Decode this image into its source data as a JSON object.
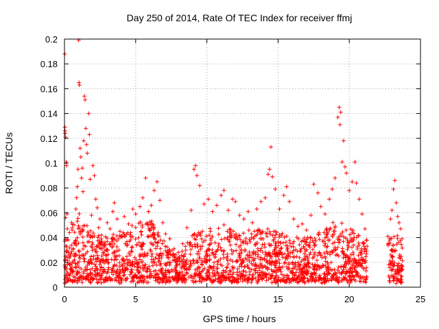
{
  "chart_data": {
    "type": "scatter",
    "title": "Day 250 of 2014, Rate Of TEC Index for receiver ffmj",
    "xlabel": "GPS time / hours",
    "ylabel": "ROTI / TECUs",
    "xlim": [
      0,
      25
    ],
    "ylim": [
      0,
      0.2
    ],
    "xticks": [
      0,
      5,
      10,
      15,
      20,
      25
    ],
    "xtick_labels": [
      "0",
      "5",
      "10",
      "15",
      "20",
      "25"
    ],
    "yticks": [
      0,
      0.02,
      0.04,
      0.06,
      0.08,
      0.1,
      0.12,
      0.14,
      0.16,
      0.18,
      0.2
    ],
    "ytick_labels": [
      "0",
      "0.02",
      "0.04",
      "0.06",
      "0.08",
      "0.1",
      "0.12",
      "0.14",
      "0.16",
      "0.18",
      "0.2"
    ],
    "grid": true,
    "marker": "plus",
    "color": "#ff0000",
    "series": [
      {
        "name": "ROTI",
        "points": [
          [
            0.02,
            0.188
          ],
          [
            0.03,
            0.129
          ],
          [
            0.04,
            0.126
          ],
          [
            0.05,
            0.124
          ],
          [
            0.07,
            0.121
          ],
          [
            0.08,
            0.056
          ],
          [
            0.1,
            0.033
          ],
          [
            0.12,
            0.101
          ],
          [
            0.15,
            0.098
          ],
          [
            0.18,
            0.059
          ],
          [
            0.2,
            0.047
          ],
          [
            0.25,
            0.038
          ],
          [
            0.3,
            0.026
          ],
          [
            0.35,
            0.044
          ],
          [
            0.4,
            0.018
          ],
          [
            0.5,
            0.052
          ],
          [
            0.6,
            0.031
          ],
          [
            0.7,
            0.022
          ],
          [
            0.8,
            0.063
          ],
          [
            0.85,
            0.072
          ],
          [
            0.9,
            0.081
          ],
          [
            0.95,
            0.095
          ],
          [
            1.0,
            0.199
          ],
          [
            1.02,
            0.165
          ],
          [
            1.05,
            0.163
          ],
          [
            1.1,
            0.112
          ],
          [
            1.15,
            0.105
          ],
          [
            1.2,
            0.088
          ],
          [
            1.25,
            0.096
          ],
          [
            1.3,
            0.077
          ],
          [
            1.35,
            0.118
          ],
          [
            1.4,
            0.154
          ],
          [
            1.45,
            0.151
          ],
          [
            1.5,
            0.128
          ],
          [
            1.55,
            0.115
          ],
          [
            1.6,
            0.108
          ],
          [
            1.7,
            0.14
          ],
          [
            1.75,
            0.123
          ],
          [
            1.8,
            0.087
          ],
          [
            1.9,
            0.058
          ],
          [
            2.0,
            0.098
          ],
          [
            2.1,
            0.09
          ],
          [
            2.2,
            0.071
          ],
          [
            2.3,
            0.064
          ],
          [
            2.4,
            0.048
          ],
          [
            2.5,
            0.055
          ],
          [
            2.6,
            0.042
          ],
          [
            2.8,
            0.036
          ],
          [
            3.0,
            0.052
          ],
          [
            3.2,
            0.047
          ],
          [
            3.4,
            0.061
          ],
          [
            3.5,
            0.068
          ],
          [
            3.7,
            0.055
          ],
          [
            3.9,
            0.045
          ],
          [
            4.2,
            0.057
          ],
          [
            4.5,
            0.051
          ],
          [
            4.8,
            0.063
          ],
          [
            5.0,
            0.059
          ],
          [
            5.3,
            0.065
          ],
          [
            5.5,
            0.072
          ],
          [
            5.7,
            0.088
          ],
          [
            5.9,
            0.061
          ],
          [
            6.1,
            0.066
          ],
          [
            6.3,
            0.078
          ],
          [
            6.5,
            0.085
          ],
          [
            6.7,
            0.07
          ],
          [
            6.9,
            0.052
          ],
          [
            7.1,
            0.043
          ],
          [
            7.4,
            0.039
          ],
          [
            7.7,
            0.031
          ],
          [
            8.0,
            0.028
          ],
          [
            8.3,
            0.035
          ],
          [
            8.6,
            0.048
          ],
          [
            8.9,
            0.062
          ],
          [
            9.1,
            0.095
          ],
          [
            9.2,
            0.098
          ],
          [
            9.3,
            0.09
          ],
          [
            9.5,
            0.082
          ],
          [
            9.8,
            0.067
          ],
          [
            10.1,
            0.071
          ],
          [
            10.4,
            0.061
          ],
          [
            10.7,
            0.066
          ],
          [
            11.0,
            0.074
          ],
          [
            11.2,
            0.078
          ],
          [
            11.5,
            0.062
          ],
          [
            11.8,
            0.071
          ],
          [
            12.0,
            0.069
          ],
          [
            12.3,
            0.058
          ],
          [
            12.6,
            0.055
          ],
          [
            12.9,
            0.061
          ],
          [
            13.2,
            0.052
          ],
          [
            13.5,
            0.063
          ],
          [
            13.8,
            0.069
          ],
          [
            14.1,
            0.072
          ],
          [
            14.3,
            0.091
          ],
          [
            14.4,
            0.095
          ],
          [
            14.5,
            0.113
          ],
          [
            14.6,
            0.089
          ],
          [
            14.8,
            0.079
          ],
          [
            15.1,
            0.063
          ],
          [
            15.4,
            0.074
          ],
          [
            15.6,
            0.081
          ],
          [
            15.8,
            0.069
          ],
          [
            16.1,
            0.055
          ],
          [
            16.4,
            0.049
          ],
          [
            16.7,
            0.051
          ],
          [
            17.0,
            0.046
          ],
          [
            17.3,
            0.058
          ],
          [
            17.5,
            0.083
          ],
          [
            17.8,
            0.076
          ],
          [
            18.0,
            0.065
          ],
          [
            18.3,
            0.059
          ],
          [
            18.6,
            0.071
          ],
          [
            18.8,
            0.079
          ],
          [
            19.0,
            0.088
          ],
          [
            19.2,
            0.137
          ],
          [
            19.3,
            0.145
          ],
          [
            19.35,
            0.131
          ],
          [
            19.4,
            0.141
          ],
          [
            19.5,
            0.101
          ],
          [
            19.6,
            0.118
          ],
          [
            19.7,
            0.097
          ],
          [
            19.8,
            0.092
          ],
          [
            20.0,
            0.078
          ],
          [
            20.2,
            0.085
          ],
          [
            20.4,
            0.101
          ],
          [
            20.5,
            0.084
          ],
          [
            20.7,
            0.071
          ],
          [
            20.9,
            0.059
          ],
          [
            21.1,
            0.047
          ],
          [
            21.2,
            0.038
          ],
          [
            21.25,
            0.033
          ],
          [
            22.7,
            0.041
          ],
          [
            22.9,
            0.055
          ],
          [
            23.0,
            0.062
          ],
          [
            23.1,
            0.079
          ],
          [
            23.2,
            0.086
          ],
          [
            23.3,
            0.068
          ],
          [
            23.4,
            0.057
          ],
          [
            23.5,
            0.052
          ],
          [
            23.6,
            0.047
          ],
          [
            23.7,
            0.039
          ]
        ],
        "density_profile": {
          "note": "background band of many dense points, upper envelope per hour",
          "ranges": [
            {
              "start": 0.0,
              "end": 21.25
            },
            {
              "start": 22.7,
              "end": 23.75
            }
          ],
          "envelope": [
            [
              0,
              0.04
            ],
            [
              1,
              0.06
            ],
            [
              2,
              0.045
            ],
            [
              3,
              0.04
            ],
            [
              4,
              0.045
            ],
            [
              5,
              0.05
            ],
            [
              6,
              0.055
            ],
            [
              7,
              0.04
            ],
            [
              8,
              0.025
            ],
            [
              9,
              0.045
            ],
            [
              10,
              0.045
            ],
            [
              11,
              0.05
            ],
            [
              12,
              0.045
            ],
            [
              13,
              0.045
            ],
            [
              14,
              0.05
            ],
            [
              15,
              0.045
            ],
            [
              16,
              0.04
            ],
            [
              17,
              0.04
            ],
            [
              18,
              0.045
            ],
            [
              19,
              0.055
            ],
            [
              20,
              0.05
            ],
            [
              21,
              0.04
            ],
            [
              22.7,
              0.04
            ],
            [
              23,
              0.045
            ],
            [
              23.75,
              0.04
            ]
          ],
          "floor": 0.005
        }
      }
    ]
  }
}
